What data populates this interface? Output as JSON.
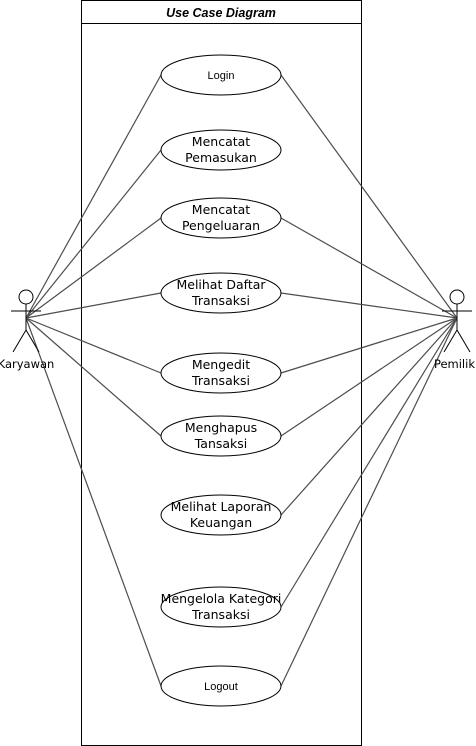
{
  "system": {
    "title": "Use Case Diagram"
  },
  "actors": [
    {
      "name": "Karyawan",
      "id": "karyawan"
    },
    {
      "name": "Pemilik",
      "id": "pemilik"
    }
  ],
  "use_cases": [
    {
      "id": "login",
      "lines": [
        "Login"
      ]
    },
    {
      "id": "mencatat-pemasukan",
      "lines": [
        "Mencatat",
        "Pemasukan"
      ]
    },
    {
      "id": "mencatat-pengeluaran",
      "lines": [
        "Mencatat",
        "Pengeluaran"
      ]
    },
    {
      "id": "melihat-daftar-transaksi",
      "lines": [
        "Melihat Daftar",
        "Transaksi"
      ]
    },
    {
      "id": "mengedit-transaksi",
      "lines": [
        "Mengedit",
        "Transaksi"
      ]
    },
    {
      "id": "menghapus-transaksi",
      "lines": [
        "Menghapus",
        "Tansaksi"
      ]
    },
    {
      "id": "melihat-laporan-keuangan",
      "lines": [
        "Melihat Laporan",
        "Keuangan"
      ]
    },
    {
      "id": "mengelola-kategori-transaksi",
      "lines": [
        "Mengelola Kategori",
        "Transaksi"
      ]
    },
    {
      "id": "logout",
      "lines": [
        "Logout"
      ]
    }
  ],
  "associations": [
    {
      "actor": "karyawan",
      "use_case": "login"
    },
    {
      "actor": "karyawan",
      "use_case": "mencatat-pemasukan"
    },
    {
      "actor": "karyawan",
      "use_case": "mencatat-pengeluaran"
    },
    {
      "actor": "karyawan",
      "use_case": "melihat-daftar-transaksi"
    },
    {
      "actor": "karyawan",
      "use_case": "mengedit-transaksi"
    },
    {
      "actor": "karyawan",
      "use_case": "menghapus-transaksi"
    },
    {
      "actor": "karyawan",
      "use_case": "logout"
    },
    {
      "actor": "pemilik",
      "use_case": "login"
    },
    {
      "actor": "pemilik",
      "use_case": "mencatat-pengeluaran"
    },
    {
      "actor": "pemilik",
      "use_case": "melihat-daftar-transaksi"
    },
    {
      "actor": "pemilik",
      "use_case": "mengedit-transaksi"
    },
    {
      "actor": "pemilik",
      "use_case": "menghapus-transaksi"
    },
    {
      "actor": "pemilik",
      "use_case": "melihat-laporan-keuangan"
    },
    {
      "actor": "pemilik",
      "use_case": "mengelola-kategori-transaksi"
    },
    {
      "actor": "pemilik",
      "use_case": "logout"
    }
  ]
}
